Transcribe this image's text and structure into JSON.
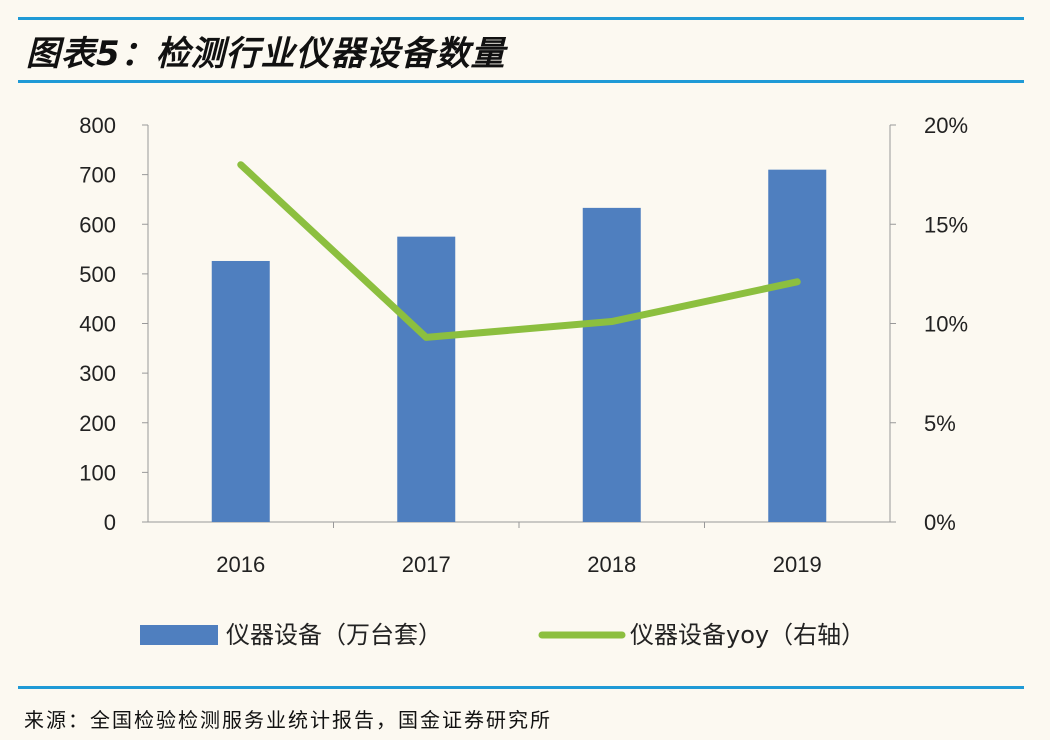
{
  "title": "图表5：检测行业仪器设备数量",
  "source": "来源：全国检验检测服务业统计报告，国金证券研究所",
  "colors": {
    "bar": "#4f7fbf",
    "line": "#8cbf3f",
    "rule": "#1f9ad6"
  },
  "chart_data": {
    "type": "bar+line",
    "categories": [
      "2016",
      "2017",
      "2018",
      "2019"
    ],
    "series": [
      {
        "name": "仪器设备（万台套）",
        "type": "bar",
        "axis": "left",
        "values": [
          526,
          575,
          633,
          710
        ]
      },
      {
        "name": "仪器设备yoy（右轴）",
        "type": "line",
        "axis": "right",
        "values": [
          18.0,
          9.3,
          10.1,
          12.1
        ]
      }
    ],
    "left_axis": {
      "ylim": [
        0,
        800
      ],
      "ticks": [
        "0",
        "100",
        "200",
        "300",
        "400",
        "500",
        "600",
        "700",
        "800"
      ]
    },
    "right_axis": {
      "ylim": [
        0,
        20
      ],
      "ticks": [
        "0%",
        "5%",
        "10%",
        "15%",
        "20%"
      ]
    },
    "grid": false,
    "legend": "bottom"
  }
}
